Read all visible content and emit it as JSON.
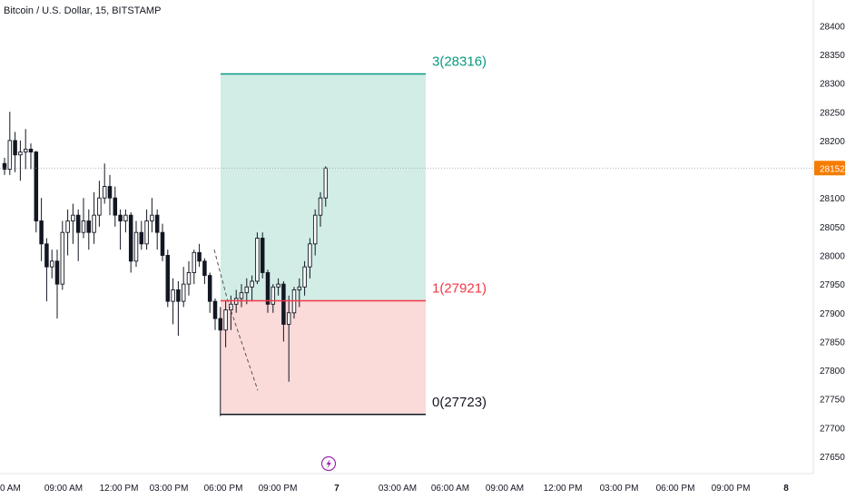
{
  "header": {
    "title": "Bitcoin / U.S. Dollar, 15, BITSTAMP"
  },
  "chart_data": {
    "type": "candlestick",
    "title": "Bitcoin / U.S. Dollar, 15, BITSTAMP",
    "xlabel": "",
    "ylabel": "",
    "ylim": [
      27620,
      28440
    ],
    "y_ticks": [
      28400,
      28350,
      28300,
      28250,
      28200,
      28150,
      28100,
      28050,
      28000,
      27950,
      27900,
      27850,
      27800,
      27750,
      27700,
      27650
    ],
    "x_ticks": [
      "0 AM",
      "09:00 AM",
      "12:00 PM",
      "03:00 PM",
      "06:00 PM",
      "09:00 PM",
      "7",
      "03:00 AM",
      "06:00 AM",
      "09:00 AM",
      "12:00 PM",
      "03:00 PM",
      "06:00 PM",
      "09:00 PM",
      "8"
    ],
    "current_price": {
      "value": 28152,
      "label": "28152",
      "color": "#f57c00"
    },
    "fib_levels": [
      {
        "name": "level-3",
        "label": "3(28316)",
        "value": 28316,
        "color": "#089981"
      },
      {
        "name": "level-1",
        "label": "1(27921)",
        "value": 27921,
        "color": "#f23645"
      },
      {
        "name": "level-0",
        "label": "0(27723)",
        "value": 27723,
        "color": "#131722"
      }
    ],
    "zones": [
      {
        "name": "profit-zone",
        "from": 27921,
        "to": 28316,
        "color": "#d1ede6"
      },
      {
        "name": "loss-zone",
        "from": 27723,
        "to": 27921,
        "color": "#fbdada"
      }
    ],
    "candles": [
      [
        28160,
        28170,
        28140,
        28150
      ],
      [
        28150,
        28250,
        28140,
        28200
      ],
      [
        28200,
        28215,
        28145,
        28175
      ],
      [
        28175,
        28200,
        28130,
        28180
      ],
      [
        28180,
        28220,
        28150,
        28185
      ],
      [
        28185,
        28195,
        28150,
        28180
      ],
      [
        28180,
        28182,
        28040,
        28060
      ],
      [
        28060,
        28100,
        27990,
        28020
      ],
      [
        28020,
        28030,
        27920,
        27980
      ],
      [
        27980,
        28010,
        27960,
        27990
      ],
      [
        27990,
        28010,
        27890,
        27950
      ],
      [
        27950,
        28060,
        27940,
        28040
      ],
      [
        28040,
        28080,
        28000,
        28060
      ],
      [
        28060,
        28090,
        28020,
        28070
      ],
      [
        28070,
        28080,
        27990,
        28040
      ],
      [
        28040,
        28100,
        28030,
        28060
      ],
      [
        28060,
        28080,
        28010,
        28040
      ],
      [
        28040,
        28110,
        28020,
        28070
      ],
      [
        28070,
        28130,
        28050,
        28100
      ],
      [
        28100,
        28160,
        28090,
        28120
      ],
      [
        28120,
        28140,
        28070,
        28100
      ],
      [
        28100,
        28120,
        28050,
        28070
      ],
      [
        28070,
        28080,
        28010,
        28060
      ],
      [
        28060,
        28080,
        28040,
        28070
      ],
      [
        28070,
        28075,
        27970,
        27990
      ],
      [
        27990,
        28060,
        27980,
        28040
      ],
      [
        28040,
        28060,
        28010,
        28020
      ],
      [
        28020,
        28080,
        28010,
        28060
      ],
      [
        28060,
        28100,
        28040,
        28070
      ],
      [
        28070,
        28080,
        28010,
        28040
      ],
      [
        28040,
        28055,
        27990,
        28000
      ],
      [
        28000,
        28010,
        27910,
        27920
      ],
      [
        27920,
        27960,
        27880,
        27940
      ],
      [
        27940,
        27955,
        27860,
        27920
      ],
      [
        27920,
        27980,
        27910,
        27950
      ],
      [
        27950,
        27990,
        27930,
        27970
      ],
      [
        27970,
        28010,
        27950,
        28005
      ],
      [
        28005,
        28020,
        27980,
        27990
      ],
      [
        27990,
        27995,
        27950,
        27965
      ],
      [
        27965,
        27970,
        27900,
        27920
      ],
      [
        27920,
        27925,
        27870,
        27890
      ],
      [
        27890,
        27910,
        27720,
        27870
      ],
      [
        27870,
        27920,
        27840,
        27905
      ],
      [
        27905,
        27930,
        27870,
        27915
      ],
      [
        27915,
        27940,
        27900,
        27925
      ],
      [
        27925,
        27950,
        27910,
        27935
      ],
      [
        27935,
        27960,
        27915,
        27945
      ],
      [
        27945,
        27965,
        27920,
        27955
      ],
      [
        27955,
        28040,
        27950,
        28030
      ],
      [
        28030,
        28040,
        27960,
        27970
      ],
      [
        27970,
        27975,
        27900,
        27915
      ],
      [
        27915,
        27950,
        27900,
        27945
      ],
      [
        27945,
        27960,
        27930,
        27950
      ],
      [
        27950,
        27955,
        27850,
        27880
      ],
      [
        27880,
        27930,
        27780,
        27900
      ],
      [
        27900,
        27945,
        27890,
        27940
      ],
      [
        27940,
        27960,
        27910,
        27945
      ],
      [
        27945,
        27990,
        27930,
        27980
      ],
      [
        27980,
        28030,
        27960,
        28020
      ],
      [
        28020,
        28080,
        28000,
        28070
      ],
      [
        28070,
        28110,
        28050,
        28100
      ],
      [
        28100,
        28155,
        28085,
        28152
      ]
    ]
  }
}
